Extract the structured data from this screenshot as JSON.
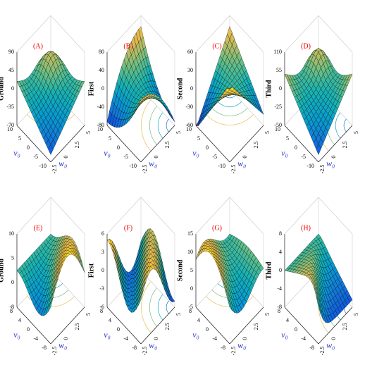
{
  "panels": [
    {
      "label": "(A)",
      "z_label": "Ground",
      "z_ticks": [
        90,
        45,
        0,
        -35,
        -70
      ],
      "v_label": "v₀",
      "v_ticks": [
        10,
        5,
        0,
        -5,
        -10
      ],
      "w_label": "w₀",
      "w_ticks": [
        -2.5,
        0,
        2.5,
        5
      ]
    },
    {
      "label": "(B)",
      "z_label": "First",
      "z_ticks": [
        80,
        40,
        0,
        -40,
        -80
      ],
      "v_label": "v₀",
      "v_ticks": [
        10,
        5,
        0,
        -5,
        -10
      ],
      "w_label": "w₀",
      "w_ticks": [
        -2.5,
        0,
        2.5,
        5
      ]
    },
    {
      "label": "(C)",
      "z_label": "Second",
      "z_ticks": [
        60,
        30,
        0,
        -30,
        -60
      ],
      "v_label": "v₀",
      "v_ticks": [
        10,
        5,
        0,
        -5,
        -10
      ],
      "w_label": "w₀",
      "w_ticks": [
        -2.5,
        0,
        2.5,
        5
      ]
    },
    {
      "label": "(D)",
      "z_label": "Third",
      "z_ticks": [
        110,
        55,
        0,
        -25,
        -50
      ],
      "v_label": "v₀",
      "v_ticks": [
        10,
        5,
        0,
        -5,
        -10
      ],
      "w_label": "w₀",
      "w_ticks": [
        -2.5,
        0,
        2.5,
        5
      ]
    },
    {
      "label": "(E)",
      "z_label": "Ground",
      "z_ticks": [
        10,
        5,
        0,
        -8
      ],
      "v_label": "v₀",
      "v_ticks": [
        8,
        4,
        0,
        -4,
        -8
      ],
      "w_label": "w₀",
      "w_ticks": [
        -2.5,
        0,
        2.5,
        5
      ]
    },
    {
      "label": "(F)",
      "z_label": "First",
      "z_ticks": [
        6,
        3,
        0,
        -3,
        -6
      ],
      "v_label": "v₀",
      "v_ticks": [
        8,
        4,
        0,
        -4,
        -8
      ],
      "w_label": "w₀",
      "w_ticks": [
        -2.5,
        0,
        2.5,
        5
      ]
    },
    {
      "label": "(G)",
      "z_label": "Second",
      "z_ticks": [
        15,
        10,
        5,
        0,
        -5
      ],
      "v_label": "v₀",
      "v_ticks": [
        8,
        4,
        0,
        -4,
        -8
      ],
      "w_label": "w₀",
      "w_ticks": [
        -2.5,
        0,
        2.5,
        5
      ]
    },
    {
      "label": "(H)",
      "z_label": "Third",
      "z_ticks": [
        8,
        4,
        0,
        -4,
        -8
      ],
      "v_label": "v₀",
      "v_ticks": [
        8,
        4,
        0,
        -4,
        -8
      ],
      "w_label": "w₀",
      "w_ticks": [
        -2.5,
        0,
        2.5,
        5
      ]
    }
  ]
}
